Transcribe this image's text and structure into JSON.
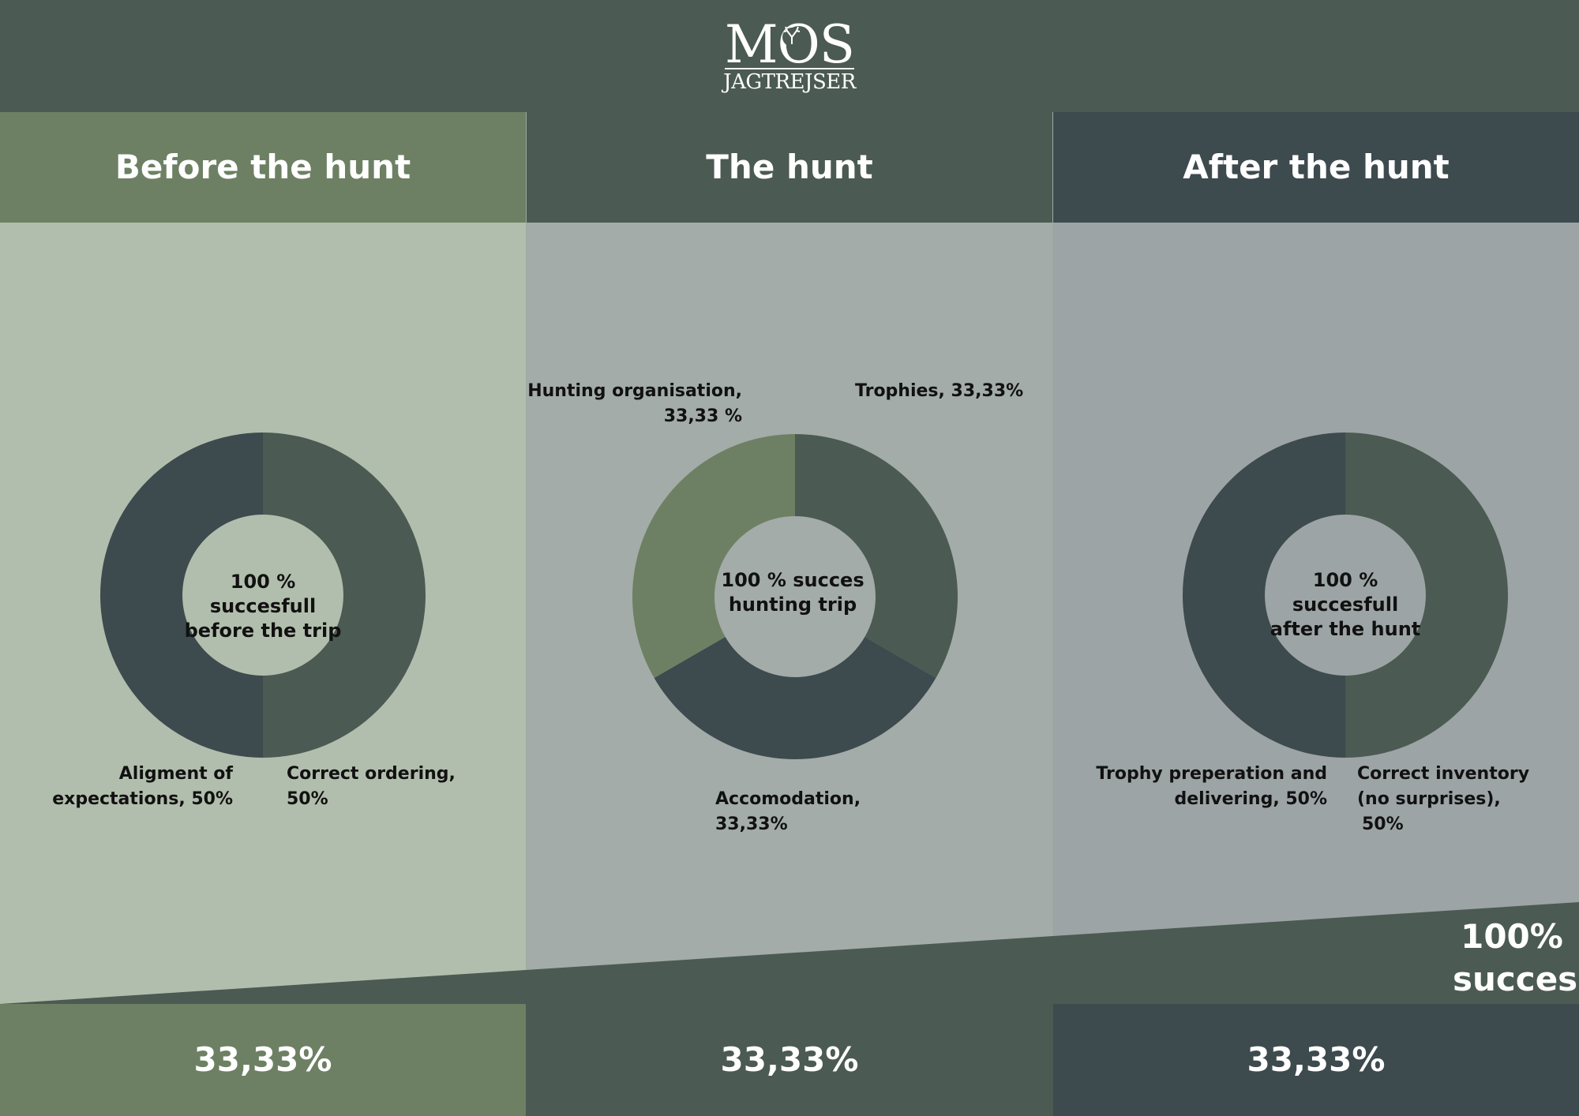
{
  "logo": {
    "name": "MOS",
    "sub": "JAGTREJSER",
    "icon": "deer-antler-icon"
  },
  "colors": {
    "header_bg": "#4b5a52",
    "before_head": "#6d8063",
    "the_hunt_head": "#4b5a52",
    "after_head": "#3d4a4e",
    "before_body": "#b2bead",
    "the_hunt_body": "#a3aca8",
    "after_body": "#9da4a5",
    "slice_dark": "#3d4a4e",
    "slice_mid": "#4b5a52",
    "slice_green": "#6d8063"
  },
  "columns": [
    {
      "title": "Before the hunt",
      "footer": "33,33%"
    },
    {
      "title": "The hunt",
      "footer": "33,33%"
    },
    {
      "title": "After the hunt",
      "footer": "33,33%"
    }
  ],
  "total": {
    "line1": "100%",
    "line2": "succes"
  },
  "chart_data": [
    {
      "type": "pie",
      "title": "Before the hunt",
      "center_text": [
        "100 % succesfull",
        "before the trip"
      ],
      "slices": [
        {
          "label": "Correct ordering,",
          "value_text": "50%",
          "value": 50,
          "color": "#4b5a52"
        },
        {
          "label": "Aligment of",
          "label2": "expectations, 50%",
          "value": 50,
          "color": "#3d4a4e"
        }
      ]
    },
    {
      "type": "pie",
      "title": "The hunt",
      "center_text": [
        "100 % succes",
        "hunting trip"
      ],
      "slices": [
        {
          "label": "Trophies, 33,33%",
          "value": 33.33,
          "color": "#4b5a52"
        },
        {
          "label": "Accomodation,",
          "value_text": "33,33%",
          "value": 33.33,
          "color": "#3d4a4e"
        },
        {
          "label": "Hunting organisation,",
          "value_text": "33,33 %",
          "value": 33.33,
          "color": "#6d8063"
        }
      ]
    },
    {
      "type": "pie",
      "title": "After the hunt",
      "center_text": [
        "100 % succesfull",
        "after the hunt"
      ],
      "slices": [
        {
          "label": "Correct inventory",
          "label2": "(no surprises),",
          "value_text": "50%",
          "value": 50,
          "color": "#4b5a52"
        },
        {
          "label": "Trophy preperation and",
          "label2": "delivering, 50%",
          "value": 50,
          "color": "#3d4a4e"
        }
      ]
    }
  ]
}
